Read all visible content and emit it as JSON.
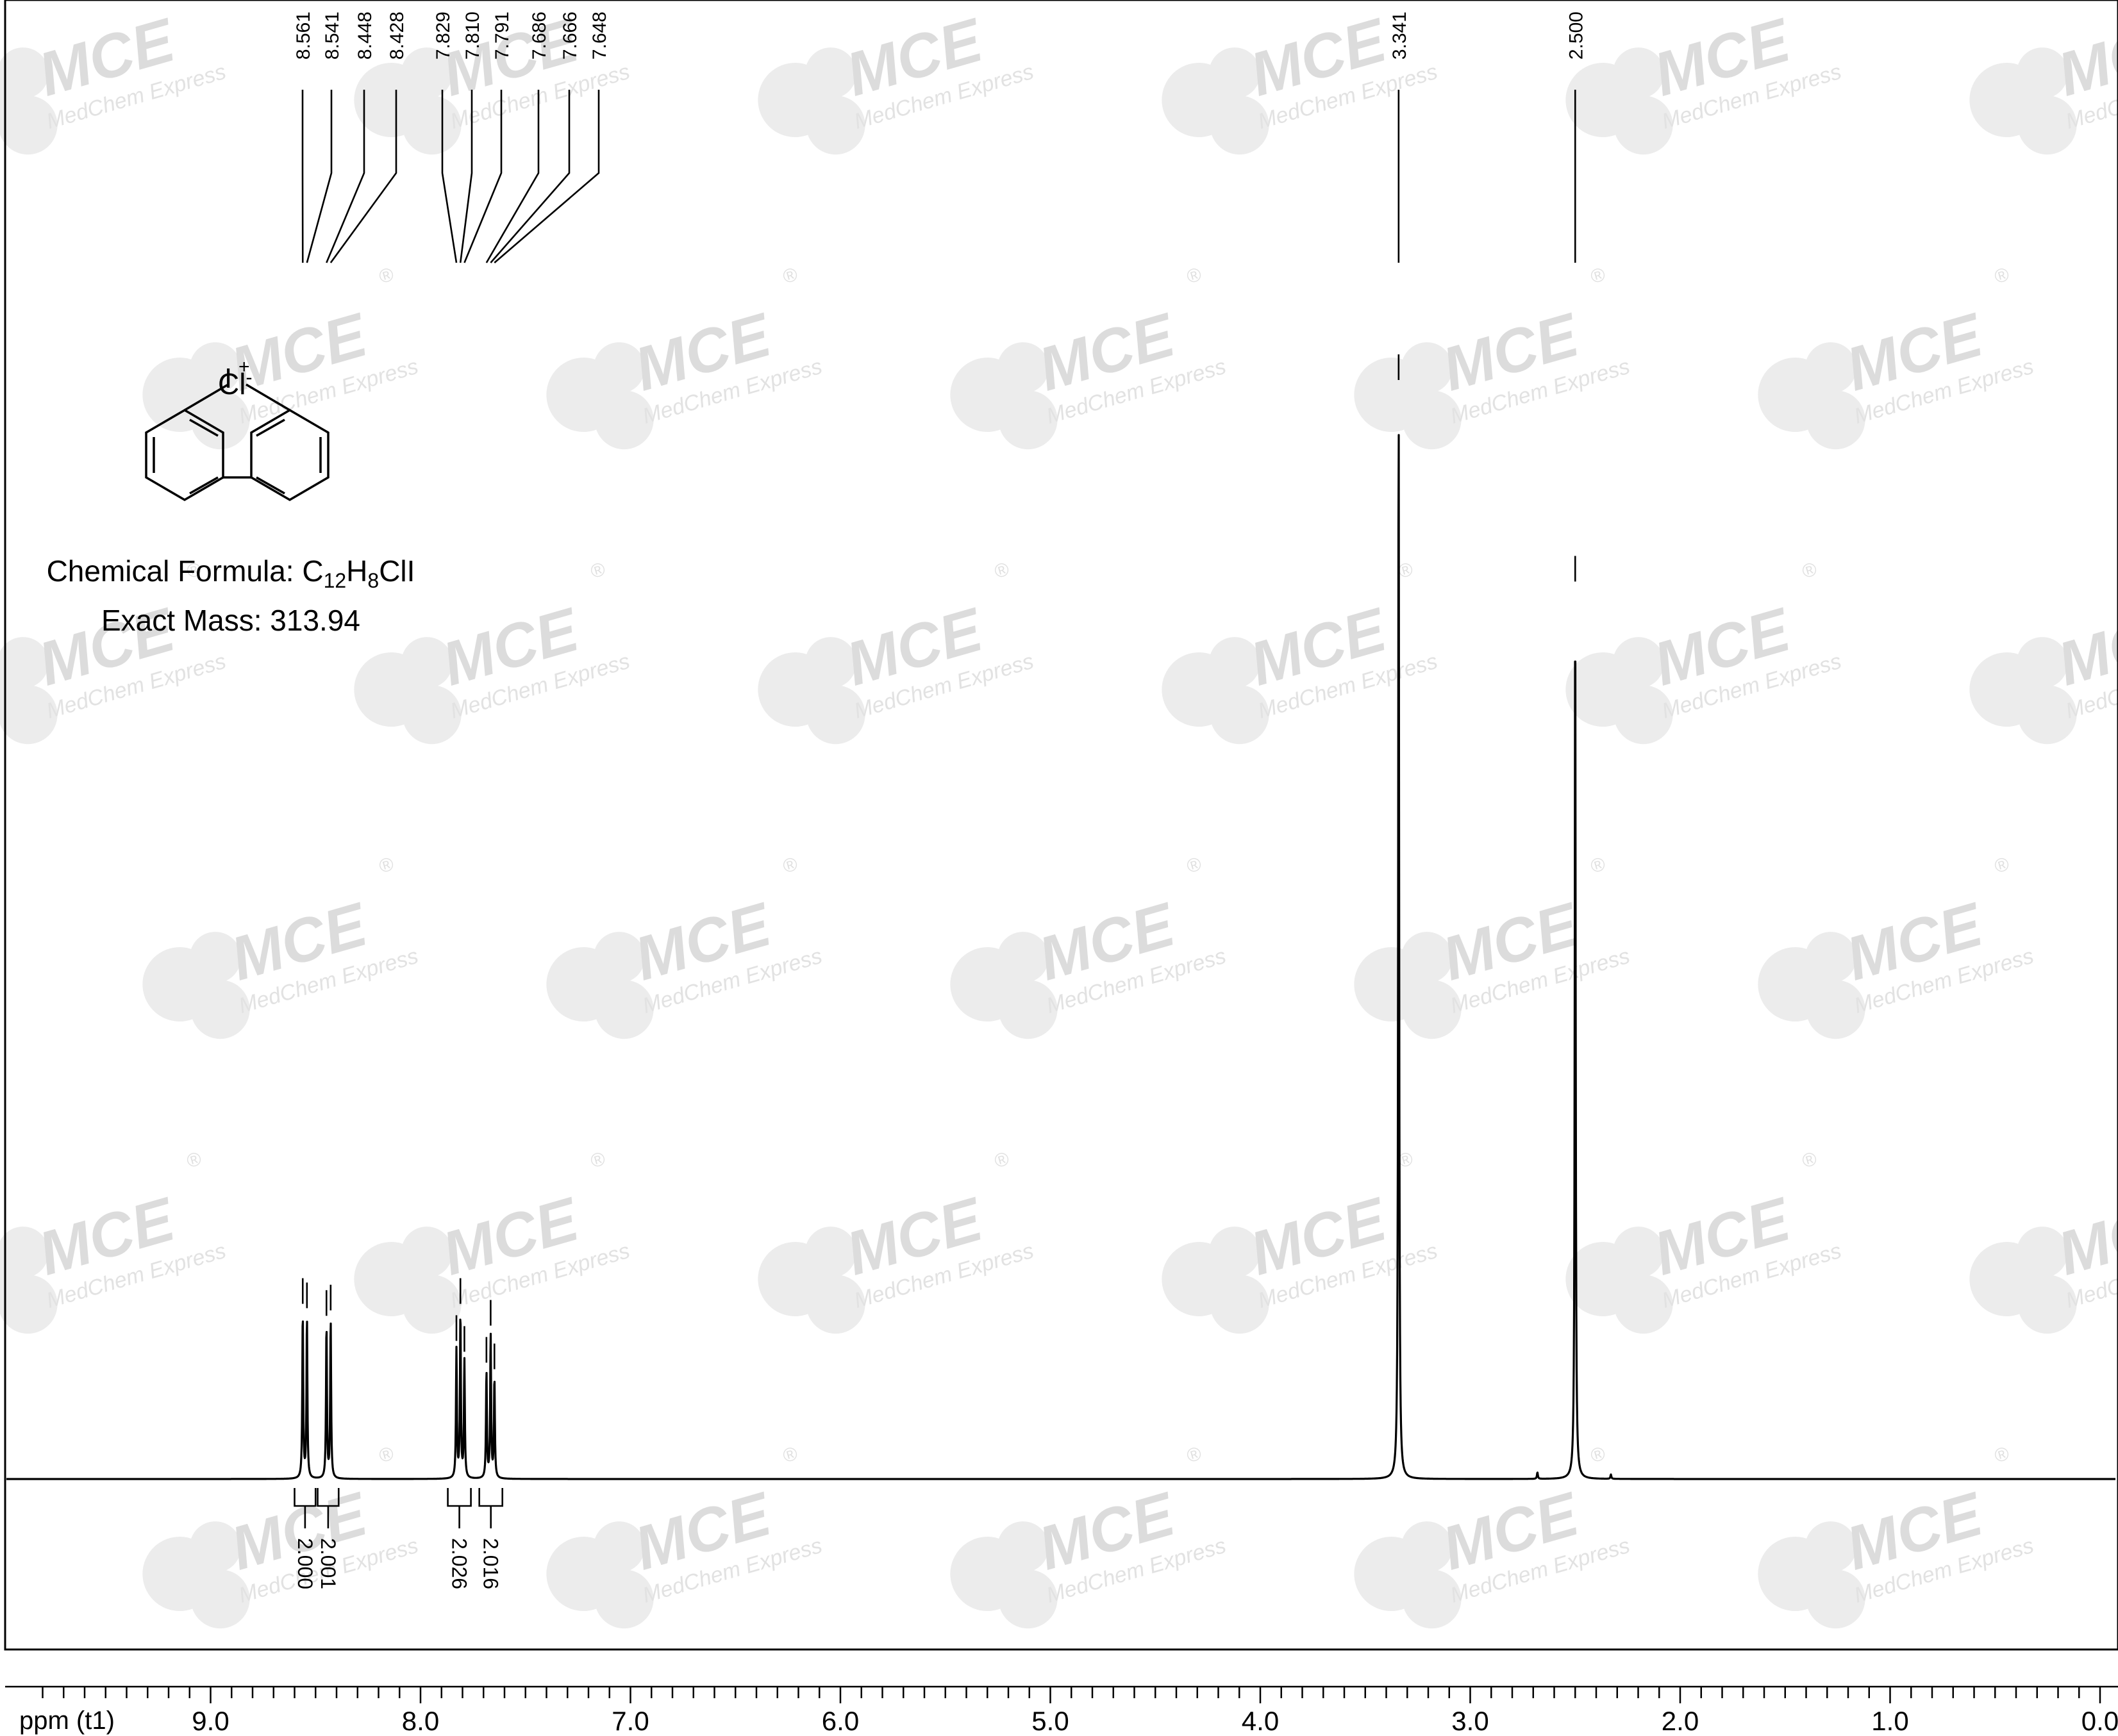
{
  "chart_data": {
    "type": "line",
    "xlabel": "ppm (t1)",
    "x_axis_reversed": true,
    "xlim": [
      9.8,
      -0.15
    ],
    "x_ticks": [
      9.0,
      8.0,
      7.0,
      6.0,
      5.0,
      4.0,
      3.0,
      2.0,
      1.0,
      0.0
    ],
    "x_tick_labels": [
      "9.0",
      "8.0",
      "7.0",
      "6.0",
      "5.0",
      "4.0",
      "3.0",
      "2.0",
      "1.0",
      "0.0"
    ],
    "grid": false,
    "series": [
      {
        "peaks": [
          {
            "ppm": 8.561,
            "height": 0.152
          },
          {
            "ppm": 8.541,
            "height": 0.148
          },
          {
            "ppm": 8.448,
            "height": 0.141
          },
          {
            "ppm": 8.428,
            "height": 0.146
          },
          {
            "ppm": 7.829,
            "height": 0.118
          },
          {
            "ppm": 7.81,
            "height": 0.152
          },
          {
            "ppm": 7.791,
            "height": 0.108
          },
          {
            "ppm": 7.686,
            "height": 0.098
          },
          {
            "ppm": 7.666,
            "height": 0.132
          },
          {
            "ppm": 7.648,
            "height": 0.092
          },
          {
            "ppm": 3.341,
            "height": 1.0
          },
          {
            "ppm": 2.5,
            "height": 0.815
          },
          {
            "ppm": 2.68,
            "height": 0.006
          },
          {
            "ppm": 2.33,
            "height": 0.004
          }
        ]
      }
    ],
    "peak_labels": [
      "8.561",
      "8.541",
      "8.448",
      "8.428",
      "7.829",
      "7.810",
      "7.791",
      "7.686",
      "7.666",
      "7.648",
      "3.341",
      "2.500"
    ],
    "integrals": [
      {
        "from": 8.6,
        "to": 8.5,
        "value": "2.000"
      },
      {
        "from": 8.49,
        "to": 8.39,
        "value": "2.001"
      },
      {
        "from": 7.87,
        "to": 7.76,
        "value": "2.026"
      },
      {
        "from": 7.72,
        "to": 7.61,
        "value": "2.016"
      }
    ]
  },
  "compound": {
    "counter_ion": "Cl",
    "counter_ion_charge": "-",
    "cation_atom": "I",
    "cation_charge": "+",
    "formula_prefix": "Chemical Formula: C",
    "formula_sub1": "12",
    "formula_mid": "H",
    "formula_sub2": "8",
    "formula_suffix": "ClI",
    "exact_mass": "Exact Mass: 313.94"
  },
  "watermark": {
    "logo": "MCE",
    "tagline": "MedChem Express",
    "registered": "®"
  }
}
